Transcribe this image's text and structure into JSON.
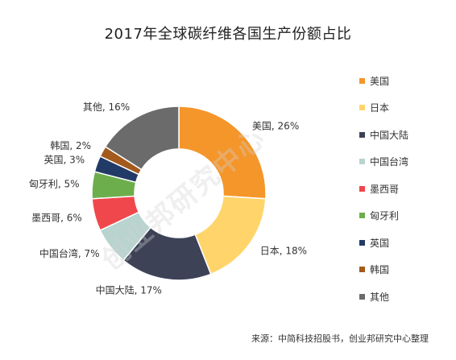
{
  "chart_data": {
    "type": "pie",
    "title": "2017年全球碳纤维各国生产份额占比",
    "categories": [
      "美国",
      "日本",
      "中国大陆",
      "中国台湾",
      "墨西哥",
      "匈牙利",
      "英国",
      "韩国",
      "其他"
    ],
    "values": [
      26,
      18,
      17,
      7,
      6,
      5,
      3,
      2,
      16
    ],
    "slice_labels": [
      "美国, 26%",
      "日本, 18%",
      "中国大陆, 17%",
      "中国台湾, 7%",
      "墨西哥, 6%",
      "匈牙利, 5%",
      "英国, 3%",
      "韩国, 2%",
      "其他, 16%"
    ],
    "colors": [
      "#F5962A",
      "#FFD56B",
      "#3D4257",
      "#B9D4CF",
      "#F0474C",
      "#6DAE4C",
      "#223A66",
      "#A35A1C",
      "#6B6B6B"
    ],
    "legend_position": "right",
    "style": "donut"
  },
  "source_note": "来源：中简科技招股书，创业邦研究中心整理",
  "watermark": "创业邦研究中心"
}
